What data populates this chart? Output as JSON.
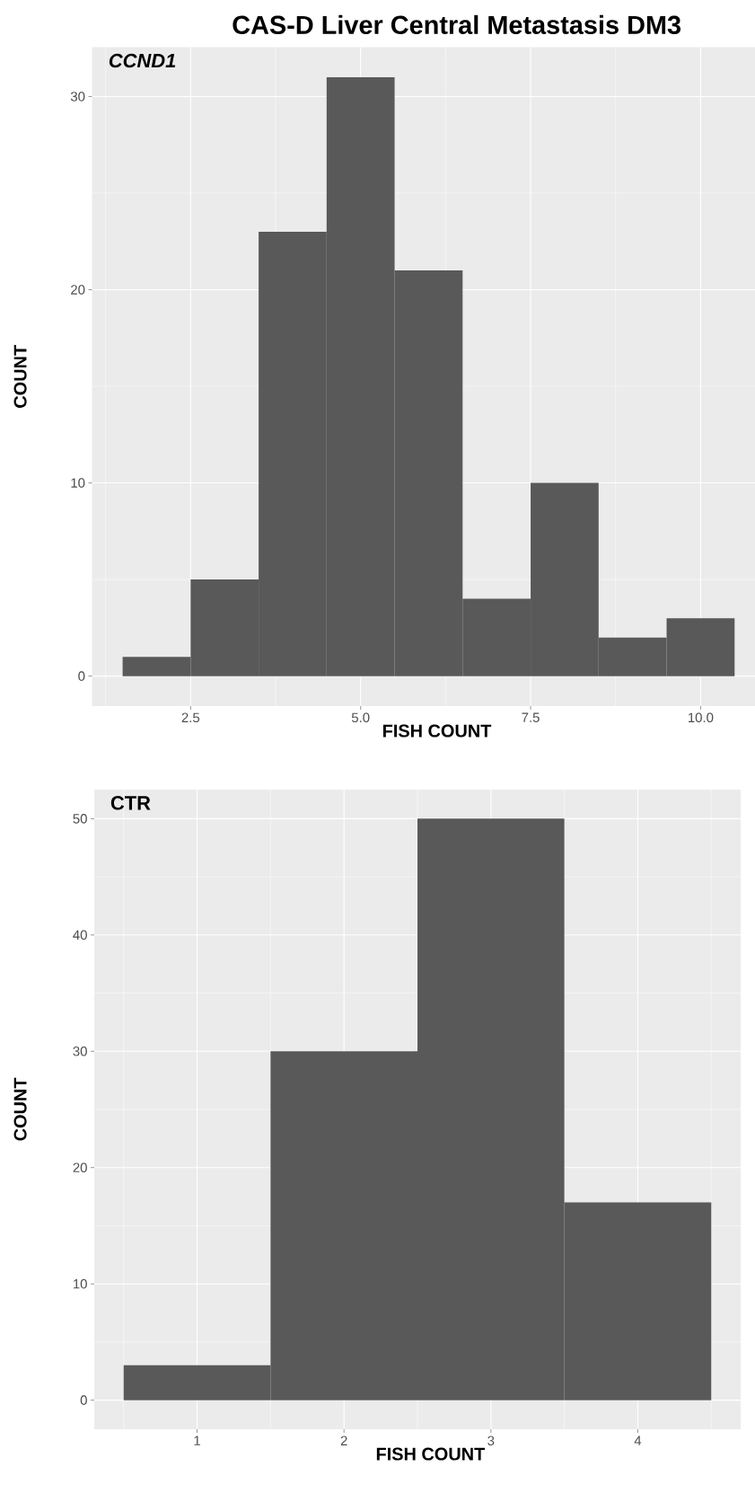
{
  "chart_data": [
    {
      "type": "histogram",
      "title": "CAS-D Liver Central Metastasis DM3",
      "annotations": [
        "CCND1"
      ],
      "xlabel": "FISH COUNT",
      "ylabel": "COUNT",
      "color": "#595959",
      "bins": [
        1.5,
        2.5,
        3.5,
        4.5,
        5.5,
        6.5,
        7.5,
        8.5,
        9.5,
        10.5
      ],
      "values": [
        1,
        5,
        23,
        31,
        21,
        4,
        10,
        2,
        3
      ],
      "xlim": [
        1.05,
        10.8
      ],
      "ylim": [
        -1.55,
        32.55
      ],
      "xticks": [
        2.5,
        {
          "value": 5,
          "label": "5.0"
        },
        7.5,
        {
          "value": 10,
          "label": "10.0"
        }
      ],
      "yticks": [
        0,
        10,
        20,
        30
      ],
      "grid": true
    },
    {
      "type": "histogram",
      "annotations": [
        "CTR"
      ],
      "xlabel": "FISH COUNT",
      "ylabel": "COUNT",
      "color": "#595959",
      "bins": [
        0.5,
        1.5,
        2.5,
        3.5,
        4.5
      ],
      "values": [
        3,
        30,
        50,
        17
      ],
      "xlim": [
        0.3,
        4.7
      ],
      "ylim": [
        -2.5,
        52.5
      ],
      "xticks": [
        1,
        2,
        3,
        4
      ],
      "yticks": [
        0,
        10,
        20,
        30,
        40,
        50
      ],
      "grid": true
    }
  ]
}
